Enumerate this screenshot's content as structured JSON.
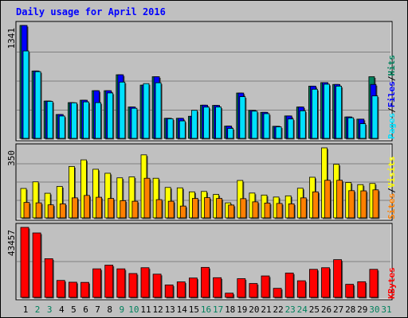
{
  "title": "Daily usage for April 2016",
  "colors": {
    "hits": "#00805c",
    "files": "#0000ff",
    "pages": "#00e0ff",
    "visits": "#ffff00",
    "sites": "#ff8000",
    "kbytes": "#ff0000",
    "title": "#0000ff",
    "weekend_day": "#00805c",
    "weekday": "#000000"
  },
  "legend_top": {
    "pages": "Pages",
    "files": "Files",
    "hits": "Hits",
    "sep": "/"
  },
  "legend_mid": {
    "sites": "Sites",
    "visits": "Visits",
    "sep": "/"
  },
  "legend_bottom": {
    "kbytes": "KBytes"
  },
  "days": [
    "1",
    "2",
    "3",
    "4",
    "5",
    "6",
    "7",
    "8",
    "9",
    "10",
    "11",
    "12",
    "13",
    "14",
    "15",
    "16",
    "17",
    "18",
    "19",
    "20",
    "21",
    "22",
    "23",
    "24",
    "25",
    "26",
    "27",
    "28",
    "29",
    "30",
    "31"
  ],
  "weekend_days": [
    "2",
    "3",
    "9",
    "10",
    "16",
    "17",
    "23",
    "24",
    "30",
    "31"
  ],
  "chart_data": [
    {
      "type": "bar",
      "panel": "hits-files-pages",
      "ylabel_max": "1341",
      "ylim": [
        0,
        1341
      ],
      "categories": [
        "1",
        "2",
        "3",
        "4",
        "5",
        "6",
        "7",
        "8",
        "9",
        "10",
        "11",
        "12",
        "13",
        "14",
        "15",
        "16",
        "17",
        "18",
        "19",
        "20",
        "21",
        "22",
        "23",
        "24",
        "25",
        "26",
        "27",
        "28",
        "29",
        "30",
        "31"
      ],
      "series": [
        {
          "name": "Hits",
          "values": [
            1341,
            800,
            443,
            283,
            424,
            453,
            566,
            566,
            755,
            372,
            632,
            732,
            238,
            238,
            262,
            394,
            391,
            145,
            538,
            332,
            309,
            143,
            266,
            372,
            620,
            662,
            640,
            254,
            228,
            732,
            0
          ]
        },
        {
          "name": "Files",
          "values": [
            1341,
            800,
            443,
            283,
            424,
            453,
            566,
            566,
            755,
            372,
            632,
            732,
            238,
            238,
            262,
            394,
            391,
            145,
            538,
            332,
            309,
            143,
            266,
            372,
            620,
            662,
            640,
            254,
            228,
            640,
            0
          ]
        },
        {
          "name": "Pages",
          "values": [
            1038,
            792,
            439,
            265,
            422,
            433,
            424,
            539,
            668,
            357,
            650,
            660,
            232,
            207,
            333,
            371,
            372,
            118,
            495,
            323,
            293,
            136,
            230,
            327,
            583,
            643,
            620,
            244,
            174,
            504,
            0
          ]
        }
      ]
    },
    {
      "type": "bar",
      "panel": "visits-sites",
      "ylabel_max": "350",
      "ylim": [
        0,
        350
      ],
      "categories": [
        "1",
        "2",
        "3",
        "4",
        "5",
        "6",
        "7",
        "8",
        "9",
        "10",
        "11",
        "12",
        "13",
        "14",
        "15",
        "16",
        "17",
        "18",
        "19",
        "20",
        "21",
        "22",
        "23",
        "24",
        "25",
        "26",
        "27",
        "28",
        "29",
        "30",
        "31"
      ],
      "series": [
        {
          "name": "Visits",
          "values": [
            147,
            180,
            123,
            157,
            257,
            290,
            243,
            223,
            200,
            205,
            315,
            198,
            152,
            150,
            130,
            132,
            117,
            75,
            187,
            124,
            114,
            104,
            110,
            148,
            203,
            350,
            268,
            177,
            166,
            172,
            0
          ]
        },
        {
          "name": "Sites",
          "values": [
            77,
            75,
            65,
            70,
            100,
            112,
            103,
            97,
            86,
            83,
            198,
            91,
            83,
            59,
            97,
            101,
            97,
            64,
            96,
            80,
            74,
            72,
            70,
            100,
            130,
            188,
            188,
            136,
            135,
            140,
            0
          ]
        }
      ]
    },
    {
      "type": "bar",
      "panel": "kbytes",
      "ylabel_max": "43457",
      "ylim": [
        0,
        43457
      ],
      "categories": [
        "1",
        "2",
        "3",
        "4",
        "5",
        "6",
        "7",
        "8",
        "9",
        "10",
        "11",
        "12",
        "13",
        "14",
        "15",
        "16",
        "17",
        "18",
        "19",
        "20",
        "21",
        "22",
        "23",
        "24",
        "25",
        "26",
        "27",
        "28",
        "29",
        "30",
        "31"
      ],
      "series": [
        {
          "name": "KBytes",
          "values": [
            43457,
            40000,
            24000,
            10500,
            9400,
            9300,
            17700,
            20000,
            17700,
            14800,
            18400,
            14400,
            7700,
            9600,
            12000,
            18600,
            12200,
            2600,
            11600,
            8600,
            13300,
            5600,
            15100,
            10300,
            17400,
            18400,
            23400,
            8100,
            9700,
            17400,
            0
          ]
        }
      ]
    }
  ]
}
